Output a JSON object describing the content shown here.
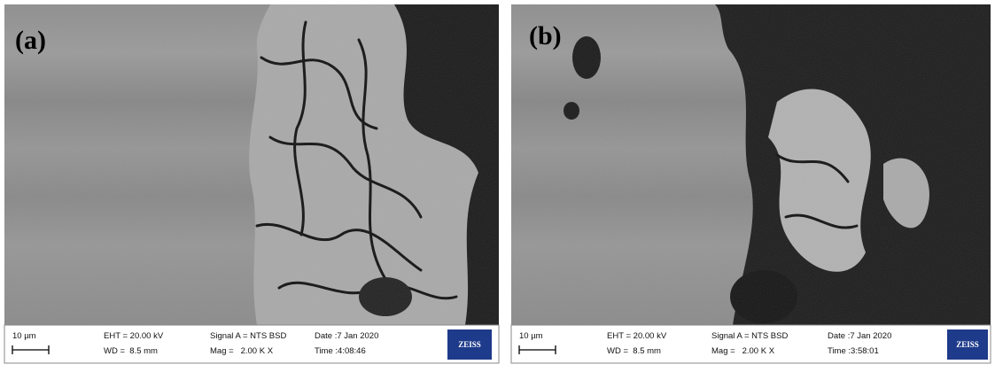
{
  "panels": [
    {
      "label": "(a)",
      "scale_bar": "10 µm",
      "eht": "EHT = 20.00 kV",
      "wd": "WD =  8.5 mm",
      "signal": "Signal A = NTS BSD",
      "mag": "Mag =   2.00 K X",
      "date": "Date :7 Jan 2020",
      "time": "Time :4:08:46",
      "logo": "ZEISS"
    },
    {
      "label": "(b)",
      "scale_bar": "10 µm",
      "eht": "EHT = 20.00 kV",
      "wd": "WD =  8.5 mm",
      "signal": "Signal A = NTS BSD",
      "mag": "Mag =   2.00 K X",
      "date": "Date :7 Jan 2020",
      "time": "Time :3:58:01",
      "logo": "ZEISS"
    }
  ]
}
